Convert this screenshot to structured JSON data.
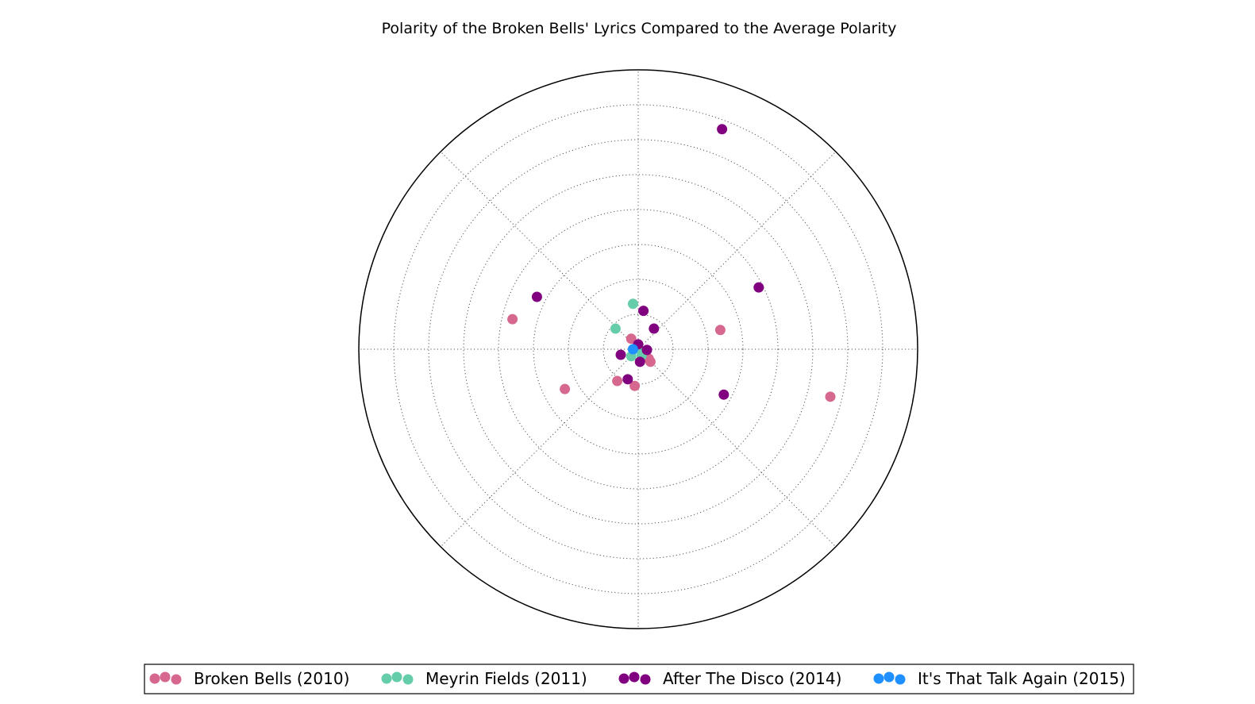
{
  "chart_data": {
    "type": "scatter",
    "projection": "polar",
    "title": "Polarity of the Broken Bells' Lyrics Compared to the Average Polarity",
    "grid": true,
    "grid_style": "dotted",
    "radial_ticks_shown": false,
    "angular_ticks_shown": false,
    "rmax": 8,
    "legend": {
      "placement": "bottom-center",
      "columns": 4,
      "markers_per_entry": 3
    },
    "series": [
      {
        "name": "Broken Bells (2010)",
        "color": "#d6678f",
        "points": [
          {
            "x": 5.5,
            "y": -1.36
          },
          {
            "x": -3.6,
            "y": 0.86
          },
          {
            "x": 2.35,
            "y": 0.55
          },
          {
            "x": -2.1,
            "y": -1.14
          },
          {
            "x": -0.6,
            "y": -0.91
          },
          {
            "x": -0.1,
            "y": -1.05
          },
          {
            "x": -0.2,
            "y": 0.3
          },
          {
            "x": 0.35,
            "y": -0.36
          },
          {
            "x": 0.3,
            "y": -0.27
          },
          {
            "x": 0.1,
            "y": -0.1
          }
        ]
      },
      {
        "name": "Meyrin Fields (2011)",
        "color": "#66cdaa",
        "points": [
          {
            "x": -0.15,
            "y": 1.3
          },
          {
            "x": -0.65,
            "y": 0.59
          },
          {
            "x": -0.2,
            "y": -0.2
          },
          {
            "x": 0.1,
            "y": -0.18
          },
          {
            "x": 0.07,
            "y": -0.05
          }
        ]
      },
      {
        "name": "After The Disco (2014)",
        "color": "#800080",
        "points": [
          {
            "x": 2.4,
            "y": 6.3
          },
          {
            "x": -2.9,
            "y": 1.5
          },
          {
            "x": 3.45,
            "y": 1.77
          },
          {
            "x": 2.45,
            "y": -1.3
          },
          {
            "x": 0.15,
            "y": 1.1
          },
          {
            "x": 0.45,
            "y": 0.59
          },
          {
            "x": -0.5,
            "y": -0.16
          },
          {
            "x": -0.3,
            "y": -0.86
          },
          {
            "x": 0.05,
            "y": -0.36
          },
          {
            "x": 0.25,
            "y": -0.02
          },
          {
            "x": 0.0,
            "y": 0.14
          }
        ]
      },
      {
        "name": "It's That Talk Again (2015)",
        "color": "#1e90ff",
        "points": [
          {
            "x": -0.15,
            "y": 0.0
          }
        ]
      }
    ]
  }
}
